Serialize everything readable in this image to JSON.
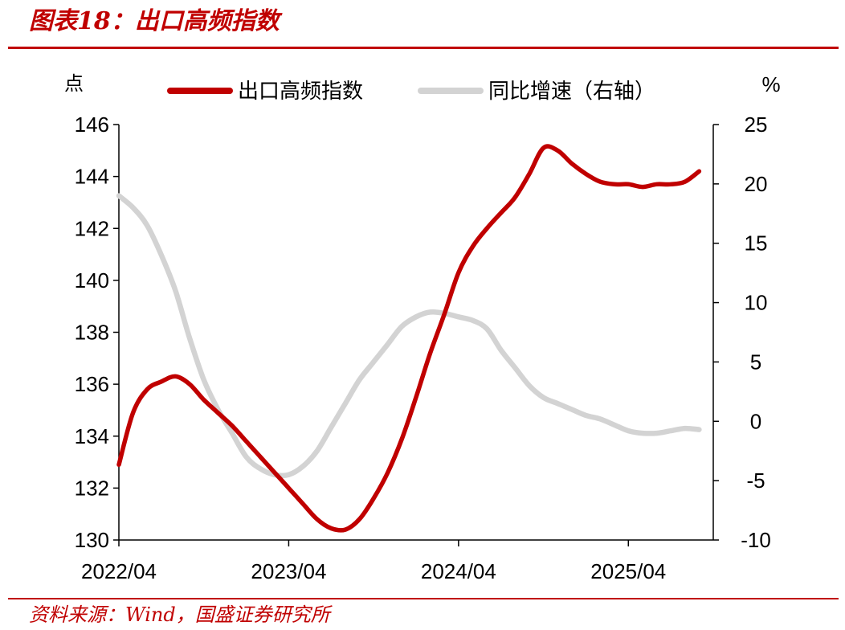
{
  "figure": {
    "title": "图表18：出口高频指数",
    "source": "资料来源：Wind，国盛证券研究所"
  },
  "chart_data": {
    "type": "line",
    "left_axis": {
      "unit": "点",
      "ylim": [
        130,
        146
      ],
      "ticks": [
        130,
        132,
        134,
        136,
        138,
        140,
        142,
        144,
        146
      ]
    },
    "right_axis": {
      "unit": "%",
      "ylim": [
        -10,
        25
      ],
      "ticks": [
        -10,
        -5,
        0,
        5,
        10,
        15,
        20,
        25
      ]
    },
    "x_axis": {
      "ticks": [
        "2022/04",
        "2023/04",
        "2024/04",
        "2025/04"
      ]
    },
    "grid": false,
    "legend_position": "top",
    "series": [
      {
        "name": "出口高频指数",
        "axis": "left",
        "color": "#c00000",
        "points": [
          [
            "2022/04",
            132.9
          ],
          [
            "2022/05",
            134.9
          ],
          [
            "2022/06",
            135.8
          ],
          [
            "2022/07",
            136.1
          ],
          [
            "2022/08",
            136.3
          ],
          [
            "2022/09",
            136.0
          ],
          [
            "2022/10",
            135.4
          ],
          [
            "2022/11",
            134.9
          ],
          [
            "2022/12",
            134.4
          ],
          [
            "2023/01",
            133.8
          ],
          [
            "2023/02",
            133.2
          ],
          [
            "2023/03",
            132.6
          ],
          [
            "2023/04",
            132.0
          ],
          [
            "2023/05",
            131.4
          ],
          [
            "2023/06",
            130.8
          ],
          [
            "2023/07",
            130.45
          ],
          [
            "2023/08",
            130.4
          ],
          [
            "2023/09",
            130.8
          ],
          [
            "2023/10",
            131.6
          ],
          [
            "2023/11",
            132.6
          ],
          [
            "2023/12",
            133.9
          ],
          [
            "2024/01",
            135.5
          ],
          [
            "2024/02",
            137.2
          ],
          [
            "2024/03",
            138.7
          ],
          [
            "2024/04",
            140.3
          ],
          [
            "2024/05",
            141.3
          ],
          [
            "2024/06",
            142.0
          ],
          [
            "2024/07",
            142.6
          ],
          [
            "2024/08",
            143.2
          ],
          [
            "2024/09",
            144.1
          ],
          [
            "2024/10",
            145.1
          ],
          [
            "2024/11",
            145.0
          ],
          [
            "2024/12",
            144.5
          ],
          [
            "2025/01",
            144.1
          ],
          [
            "2025/02",
            143.8
          ],
          [
            "2025/03",
            143.7
          ],
          [
            "2025/04",
            143.7
          ],
          [
            "2025/05",
            143.6
          ],
          [
            "2025/06",
            143.7
          ],
          [
            "2025/07",
            143.7
          ],
          [
            "2025/08",
            143.8
          ],
          [
            "2025/09",
            144.2
          ]
        ]
      },
      {
        "name": "同比增速（右轴）",
        "axis": "right",
        "color": "#d3d3d3",
        "points": [
          [
            "2022/04",
            19.0
          ],
          [
            "2022/05",
            18.0
          ],
          [
            "2022/06",
            16.5
          ],
          [
            "2022/07",
            14.0
          ],
          [
            "2022/08",
            11.0
          ],
          [
            "2022/09",
            7.0
          ],
          [
            "2022/10",
            3.5
          ],
          [
            "2022/11",
            1.0
          ],
          [
            "2022/12",
            -1.0
          ],
          [
            "2023/01",
            -3.0
          ],
          [
            "2023/02",
            -4.0
          ],
          [
            "2023/03",
            -4.5
          ],
          [
            "2023/04",
            -4.5
          ],
          [
            "2023/05",
            -3.8
          ],
          [
            "2023/06",
            -2.5
          ],
          [
            "2023/07",
            -0.5
          ],
          [
            "2023/08",
            1.5
          ],
          [
            "2023/09",
            3.5
          ],
          [
            "2023/10",
            5.0
          ],
          [
            "2023/11",
            6.5
          ],
          [
            "2023/12",
            8.0
          ],
          [
            "2024/01",
            8.8
          ],
          [
            "2024/02",
            9.2
          ],
          [
            "2024/03",
            9.1
          ],
          [
            "2024/04",
            8.8
          ],
          [
            "2024/05",
            8.5
          ],
          [
            "2024/06",
            7.8
          ],
          [
            "2024/07",
            6.0
          ],
          [
            "2024/08",
            4.5
          ],
          [
            "2024/09",
            3.0
          ],
          [
            "2024/10",
            2.0
          ],
          [
            "2024/11",
            1.5
          ],
          [
            "2024/12",
            1.0
          ],
          [
            "2025/01",
            0.5
          ],
          [
            "2025/02",
            0.2
          ],
          [
            "2025/03",
            -0.3
          ],
          [
            "2025/04",
            -0.8
          ],
          [
            "2025/05",
            -1.0
          ],
          [
            "2025/06",
            -1.0
          ],
          [
            "2025/07",
            -0.8
          ],
          [
            "2025/08",
            -0.6
          ],
          [
            "2025/09",
            -0.7
          ]
        ]
      }
    ]
  }
}
